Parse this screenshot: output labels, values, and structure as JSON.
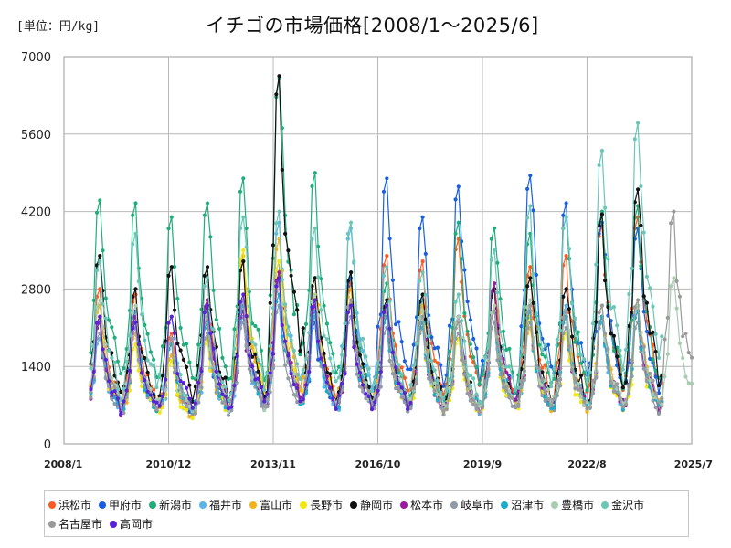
{
  "unit_label": "[単位：円/kg]",
  "chart_data": {
    "type": "line",
    "title": "イチゴの市場価格[2008/1～2025/6]",
    "ylim": [
      0,
      7000
    ],
    "yticks": [
      0,
      1400,
      2800,
      4200,
      5600,
      7000
    ],
    "xlim": [
      2008.0,
      2025.5
    ],
    "xticks": [
      "2008/1",
      "2010/12",
      "2013/11",
      "2016/10",
      "2019/9",
      "2022/8",
      "2025/7"
    ],
    "grid": true,
    "legend_position": "bottom",
    "season_start_years": [
      2008,
      2009,
      2010,
      2011,
      2012,
      2013,
      2014,
      2015,
      2016,
      2017,
      2018,
      2019,
      2020,
      2021,
      2022,
      2023,
      2024
    ],
    "series": [
      {
        "name": "浜松市",
        "color": "#ff5a1f",
        "start": 2008,
        "end": 2023,
        "peaks": [
          2800,
          2700,
          2000,
          2600,
          3300,
          2900,
          3000,
          2900,
          3400,
          3300,
          3700,
          2900,
          3200,
          3400,
          3950,
          4100,
          null
        ]
      },
      {
        "name": "甲府市",
        "color": "#1a5fe0",
        "start": 2008,
        "end": 2023,
        "peaks": [
          2200,
          2400,
          1900,
          2200,
          2600,
          3300,
          2200,
          3000,
          4800,
          4100,
          4650,
          2800,
          4850,
          4350,
          4000,
          3900,
          null
        ]
      },
      {
        "name": "新潟市",
        "color": "#1fae7a",
        "start": 2008,
        "end": 2023,
        "peaks": [
          4400,
          4350,
          4100,
          4350,
          4800,
          6600,
          4900,
          3100,
          2900,
          2600,
          4000,
          3900,
          3800,
          4100,
          4200,
          4300,
          null
        ]
      },
      {
        "name": "福井市",
        "color": "#5ab4e6",
        "start": 2008,
        "end": 2023,
        "peaks": [
          1900,
          2000,
          1600,
          1900,
          2300,
          4000,
          2300,
          3900,
          2500,
          2600,
          2300,
          2200,
          2300,
          2500,
          2300,
          2500,
          null
        ]
      },
      {
        "name": "富山市",
        "color": "#f3b21a",
        "start": 2008,
        "end": 2023,
        "peaks": [
          2500,
          2000,
          1600,
          2200,
          3400,
          3700,
          3000,
          2800,
          2500,
          2500,
          2200,
          2500,
          2100,
          2400,
          2500,
          2600,
          null
        ]
      },
      {
        "name": "長野市",
        "color": "#f2e60c",
        "start": 2008,
        "end": 2023,
        "peaks": [
          2200,
          1800,
          1500,
          1900,
          3500,
          3300,
          2700,
          2600,
          2300,
          2100,
          1900,
          2200,
          2300,
          2000,
          2300,
          2200,
          null
        ]
      },
      {
        "name": "静岡市",
        "color": "#111111",
        "start": 2008,
        "end": 2023,
        "peaks": [
          3400,
          2800,
          3200,
          3200,
          3300,
          6650,
          3000,
          3100,
          2600,
          2700,
          2300,
          2800,
          3000,
          2800,
          4150,
          4600,
          null
        ]
      },
      {
        "name": "松本市",
        "color": "#9a1aa0",
        "start": 2008,
        "end": 2023,
        "peaks": [
          2200,
          2300,
          1900,
          2600,
          2400,
          3100,
          2500,
          2500,
          2400,
          2200,
          2300,
          2900,
          2400,
          2300,
          2300,
          2400,
          null
        ]
      },
      {
        "name": "岐阜市",
        "color": "#8f9aa6",
        "start": 2008,
        "end": 2023,
        "peaks": [
          2000,
          2100,
          1800,
          2000,
          2200,
          2500,
          2300,
          2300,
          2100,
          2100,
          2000,
          2200,
          2200,
          2100,
          2200,
          2200,
          null
        ]
      },
      {
        "name": "沼津市",
        "color": "#1eaac8",
        "start": 2008,
        "end": 2023,
        "peaks": [
          2300,
          2200,
          1800,
          2200,
          2500,
          2700,
          2400,
          2500,
          2300,
          2200,
          2200,
          2400,
          2400,
          2300,
          2300,
          2400,
          null
        ]
      },
      {
        "name": "豊橋市",
        "color": "#a8ccb0",
        "start": 2008,
        "end": 2024,
        "peaks": [
          2600,
          2500,
          1900,
          2400,
          2600,
          3000,
          2700,
          2600,
          2500,
          2400,
          2300,
          2500,
          2600,
          2400,
          2500,
          2500,
          3000
        ]
      },
      {
        "name": "金沢市",
        "color": "#6cc6b8",
        "start": 2008,
        "end": 2023,
        "peaks": [
          3300,
          3800,
          2300,
          3000,
          4100,
          4200,
          3900,
          4000,
          3200,
          3100,
          2700,
          3500,
          4300,
          4100,
          5300,
          5800,
          null
        ]
      },
      {
        "name": "名古屋市",
        "color": "#9a9a9a",
        "start": 2008,
        "end": 2024,
        "peaks": [
          2300,
          2200,
          1900,
          2300,
          2600,
          2900,
          2600,
          2600,
          2400,
          2300,
          2200,
          2400,
          2500,
          2400,
          2500,
          2600,
          4200
        ]
      },
      {
        "name": "高岡市",
        "color": "#5a22d6",
        "start": 2008,
        "end": 2016,
        "peaks": [
          2300,
          2200,
          2300,
          2500,
          2700,
          3000,
          2600,
          2500,
          2500,
          null,
          null,
          null,
          null,
          null,
          null,
          null,
          null
        ]
      }
    ]
  }
}
